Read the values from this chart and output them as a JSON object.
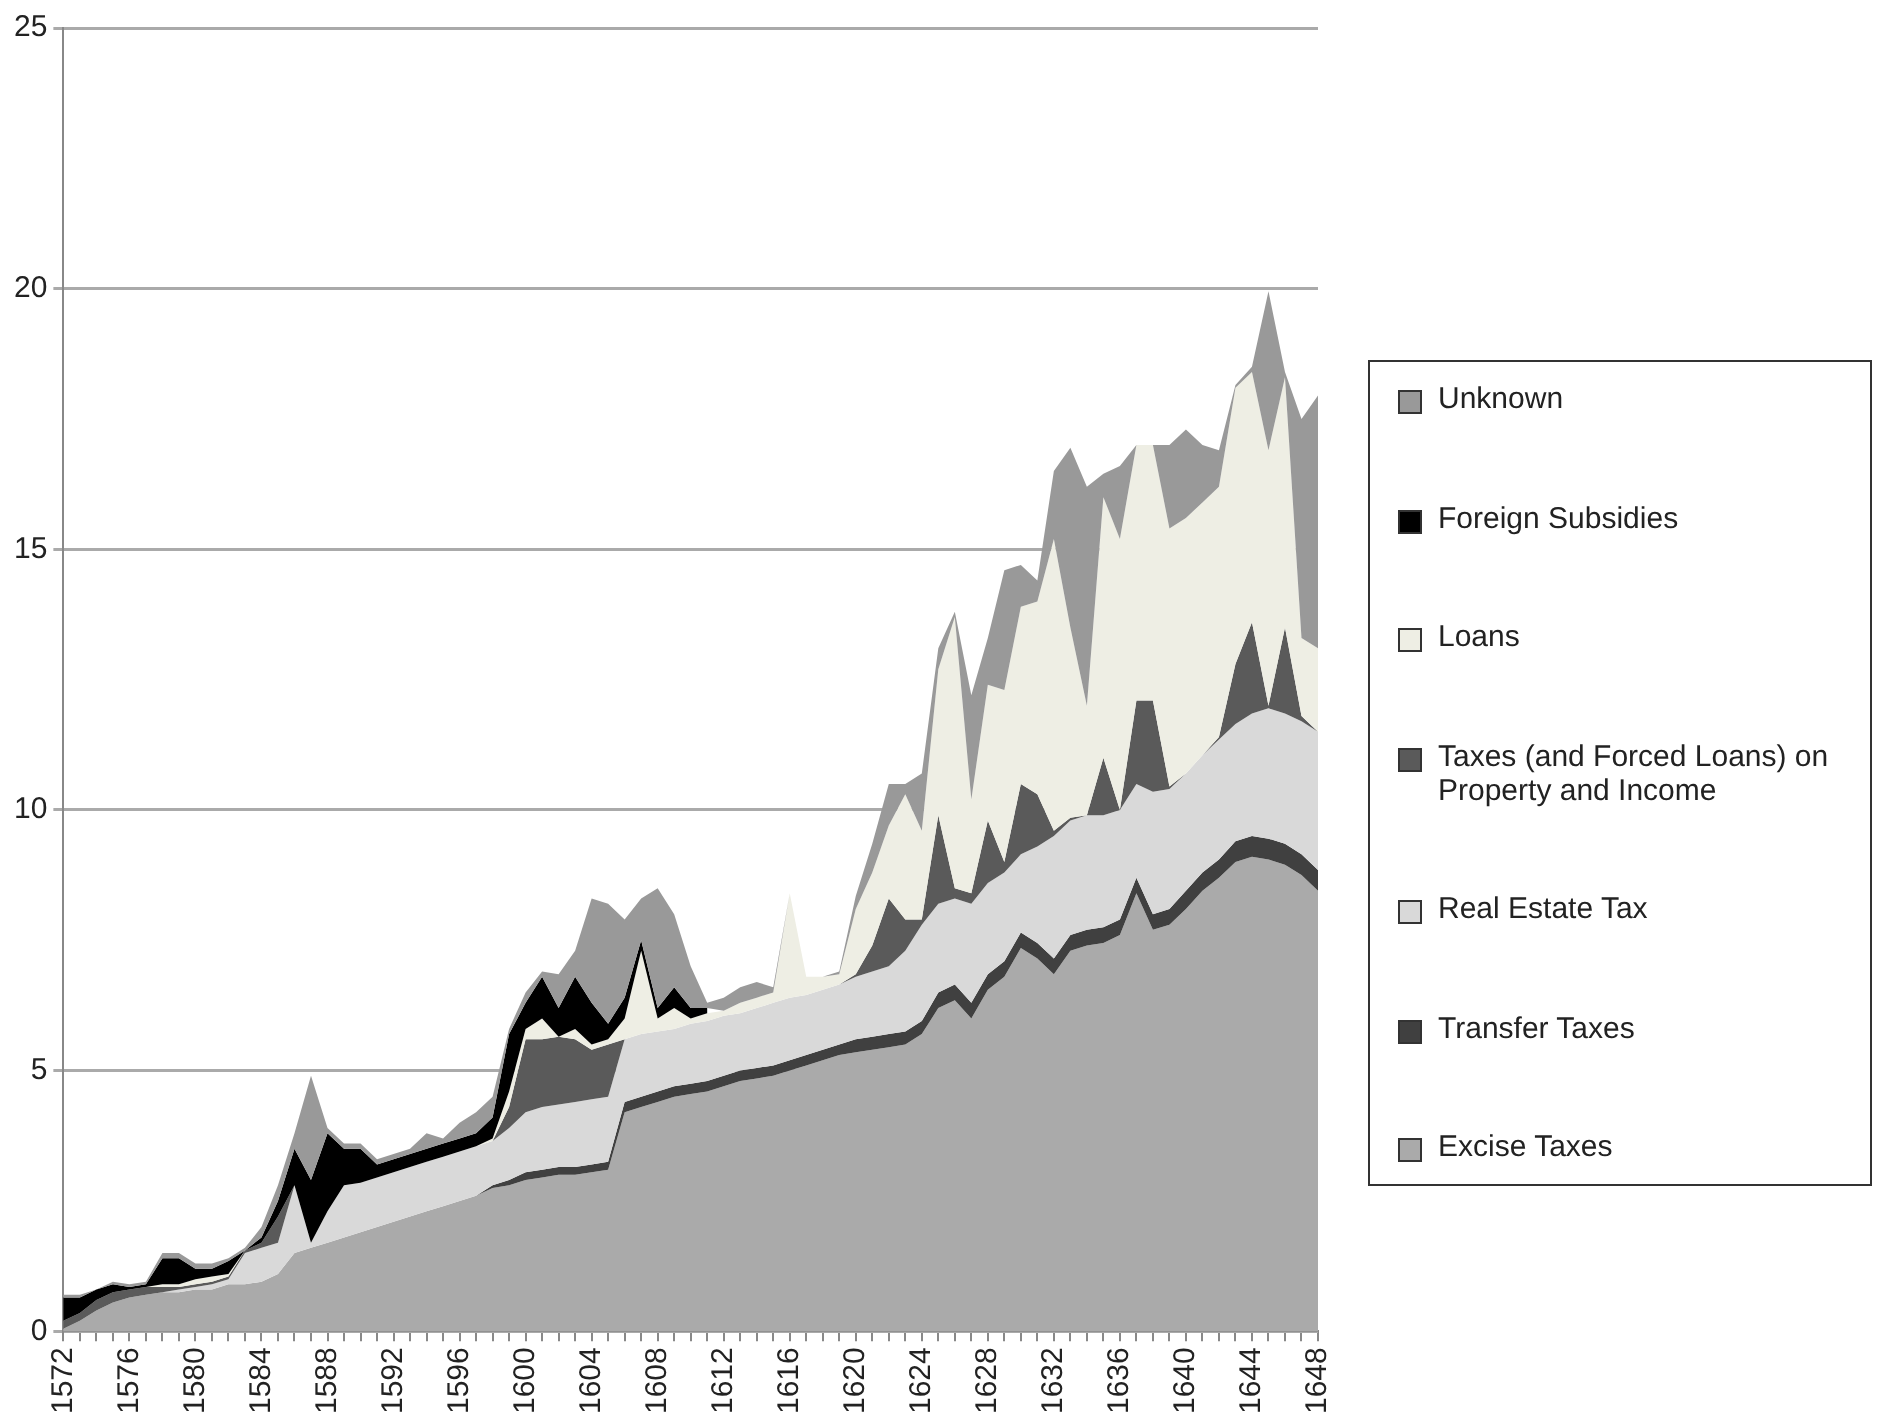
{
  "chart_data": {
    "type": "area",
    "stacked": true,
    "legend": "right",
    "grid": "y",
    "marker": "none",
    "x": [
      1572,
      1573,
      1574,
      1575,
      1576,
      1577,
      1578,
      1579,
      1580,
      1581,
      1582,
      1583,
      1584,
      1585,
      1586,
      1587,
      1588,
      1589,
      1590,
      1591,
      1592,
      1593,
      1594,
      1595,
      1596,
      1597,
      1598,
      1599,
      1600,
      1601,
      1602,
      1603,
      1604,
      1605,
      1606,
      1607,
      1608,
      1609,
      1610,
      1611,
      1612,
      1613,
      1614,
      1615,
      1616,
      1617,
      1618,
      1619,
      1620,
      1621,
      1622,
      1623,
      1624,
      1625,
      1626,
      1627,
      1628,
      1629,
      1630,
      1631,
      1632,
      1633,
      1634,
      1635,
      1636,
      1637,
      1638,
      1639,
      1640,
      1641,
      1642,
      1643,
      1644,
      1645,
      1646,
      1647,
      1648
    ],
    "xlim": [
      1572,
      1648
    ],
    "xticks": [
      1572,
      {
        "value": 1573,
        "label": null
      },
      {
        "value": 1574,
        "label": null
      },
      {
        "value": 1575,
        "label": null
      },
      1576,
      {
        "value": 1577,
        "label": null
      },
      {
        "value": 1578,
        "label": null
      },
      {
        "value": 1579,
        "label": null
      },
      1580,
      {
        "value": 1581,
        "label": null
      },
      {
        "value": 1582,
        "label": null
      },
      {
        "value": 1583,
        "label": null
      },
      1584,
      {
        "value": 1585,
        "label": null
      },
      {
        "value": 1586,
        "label": null
      },
      {
        "value": 1587,
        "label": null
      },
      1588,
      {
        "value": 1589,
        "label": null
      },
      {
        "value": 1590,
        "label": null
      },
      {
        "value": 1591,
        "label": null
      },
      1592,
      {
        "value": 1593,
        "label": null
      },
      {
        "value": 1594,
        "label": null
      },
      {
        "value": 1595,
        "label": null
      },
      1596,
      {
        "value": 1597,
        "label": null
      },
      {
        "value": 1598,
        "label": null
      },
      {
        "value": 1599,
        "label": null
      },
      1600,
      {
        "value": 1601,
        "label": null
      },
      {
        "value": 1602,
        "label": null
      },
      {
        "value": 1603,
        "label": null
      },
      1604,
      {
        "value": 1605,
        "label": null
      },
      {
        "value": 1606,
        "label": null
      },
      {
        "value": 1607,
        "label": null
      },
      1608,
      {
        "value": 1609,
        "label": null
      },
      {
        "value": 1610,
        "label": null
      },
      {
        "value": 1611,
        "label": null
      },
      1612,
      {
        "value": 1613,
        "label": null
      },
      {
        "value": 1614,
        "label": null
      },
      {
        "value": 1615,
        "label": null
      },
      1616,
      {
        "value": 1617,
        "label": null
      },
      {
        "value": 1618,
        "label": null
      },
      {
        "value": 1619,
        "label": null
      },
      1620,
      {
        "value": 1621,
        "label": null
      },
      {
        "value": 1622,
        "label": null
      },
      {
        "value": 1623,
        "label": null
      },
      1624,
      {
        "value": 1625,
        "label": null
      },
      {
        "value": 1626,
        "label": null
      },
      {
        "value": 1627,
        "label": null
      },
      1628,
      {
        "value": 1629,
        "label": null
      },
      {
        "value": 1630,
        "label": null
      },
      {
        "value": 1631,
        "label": null
      },
      1632,
      {
        "value": 1633,
        "label": null
      },
      {
        "value": 1634,
        "label": null
      },
      {
        "value": 1635,
        "label": null
      },
      1636,
      {
        "value": 1637,
        "label": null
      },
      {
        "value": 1638,
        "label": null
      },
      {
        "value": 1639,
        "label": null
      },
      1640,
      {
        "value": 1641,
        "label": null
      },
      {
        "value": 1642,
        "label": null
      },
      {
        "value": 1643,
        "label": null
      },
      1644,
      {
        "value": 1645,
        "label": null
      },
      {
        "value": 1646,
        "label": null
      },
      {
        "value": 1647,
        "label": null
      },
      1648
    ],
    "ylim": [
      0,
      25
    ],
    "yticks": [
      0,
      5,
      10,
      15,
      20,
      25
    ],
    "line_style": "solid",
    "series": [
      {
        "name": "Excise Taxes",
        "color": "#aaaaaa",
        "values": [
          0.05,
          0.2,
          0.4,
          0.55,
          0.65,
          0.7,
          0.75,
          0.75,
          0.8,
          0.8,
          0.9,
          0.9,
          0.95,
          1.1,
          1.5,
          1.6,
          1.7,
          1.8,
          1.9,
          2.0,
          2.1,
          2.2,
          2.3,
          2.4,
          2.5,
          2.6,
          2.75,
          2.8,
          2.9,
          2.95,
          3.0,
          3.0,
          3.05,
          3.1,
          4.2,
          4.3,
          4.4,
          4.5,
          4.55,
          4.6,
          4.7,
          4.8,
          4.85,
          4.9,
          5.0,
          5.1,
          5.2,
          5.3,
          5.35,
          5.4,
          5.45,
          5.5,
          5.7,
          6.2,
          6.35,
          6.0,
          6.55,
          6.8,
          7.35,
          7.15,
          6.85,
          7.3,
          7.4,
          7.45,
          7.6,
          8.4,
          7.7,
          7.8,
          8.1,
          8.45,
          8.7,
          9.0,
          9.1,
          9.05,
          8.95,
          8.75,
          8.45
        ]
      },
      {
        "name": "Transfer Taxes",
        "color": "#404040",
        "values": [
          0,
          0,
          0,
          0,
          0,
          0,
          0,
          0,
          0,
          0,
          0,
          0,
          0,
          0,
          0,
          0,
          0,
          0,
          0,
          0,
          0,
          0,
          0,
          0,
          0,
          0,
          0.05,
          0.1,
          0.15,
          0.15,
          0.15,
          0.15,
          0.15,
          0.15,
          0.2,
          0.2,
          0.2,
          0.2,
          0.2,
          0.2,
          0.2,
          0.2,
          0.2,
          0.2,
          0.2,
          0.2,
          0.2,
          0.2,
          0.25,
          0.25,
          0.25,
          0.25,
          0.25,
          0.3,
          0.3,
          0.3,
          0.3,
          0.3,
          0.3,
          0.3,
          0.3,
          0.3,
          0.3,
          0.3,
          0.3,
          0.3,
          0.3,
          0.3,
          0.35,
          0.35,
          0.35,
          0.4,
          0.4,
          0.4,
          0.4,
          0.4,
          0.4
        ]
      },
      {
        "name": "Real Estate Tax",
        "color": "#d9d9d9",
        "values": [
          0,
          0,
          0,
          0,
          0,
          0,
          0,
          0.05,
          0.05,
          0.1,
          0.1,
          0.6,
          0.65,
          0.6,
          1.3,
          0.1,
          0.6,
          1.0,
          0.95,
          0.95,
          0.95,
          0.95,
          0.95,
          0.95,
          0.95,
          0.95,
          0.85,
          1.0,
          1.15,
          1.2,
          1.2,
          1.25,
          1.25,
          1.25,
          1.2,
          1.2,
          1.15,
          1.1,
          1.15,
          1.15,
          1.15,
          1.1,
          1.15,
          1.2,
          1.2,
          1.15,
          1.15,
          1.15,
          1.2,
          1.25,
          1.3,
          1.55,
          1.85,
          1.7,
          1.65,
          1.9,
          1.75,
          1.7,
          1.5,
          1.85,
          2.35,
          2.2,
          2.2,
          2.15,
          2.1,
          1.8,
          2.35,
          2.3,
          2.25,
          2.25,
          2.3,
          2.25,
          2.35,
          2.5,
          2.5,
          2.55,
          2.65
        ]
      },
      {
        "name": "Taxes (and Forced Loans) on Property and Income",
        "color": "#5a5a5a",
        "values": [
          0.15,
          0.15,
          0.2,
          0.2,
          0.15,
          0.15,
          0.1,
          0.05,
          0.05,
          0.05,
          0.05,
          0.05,
          0.1,
          0.5,
          0,
          0,
          0,
          0,
          0,
          0,
          0,
          0,
          0,
          0,
          0,
          0,
          0,
          0.4,
          1.4,
          1.3,
          1.3,
          1.2,
          0.95,
          1.0,
          0,
          0,
          0,
          0,
          0,
          0,
          0,
          0,
          0,
          0,
          0,
          0,
          0,
          0,
          0.05,
          0.5,
          1.3,
          0.6,
          0.1,
          1.7,
          0.2,
          0.2,
          1.2,
          0.2,
          1.35,
          1.0,
          0.1,
          0.05,
          0,
          1.1,
          0,
          1.6,
          1.75,
          0.05,
          0,
          0,
          0.05,
          1.15,
          1.75,
          0.05,
          1.65,
          0.1,
          0
        ]
      },
      {
        "name": "Loans",
        "color": "#eeeee4",
        "values": [
          0,
          0,
          0,
          0,
          0,
          0,
          0.05,
          0.05,
          0.1,
          0.1,
          0.05,
          0,
          0,
          0,
          0,
          0,
          0,
          0,
          0,
          0,
          0,
          0,
          0,
          0,
          0,
          0,
          0.05,
          0.3,
          0.2,
          0.4,
          0,
          0.2,
          0.1,
          0.1,
          0.4,
          1.6,
          0.25,
          0.4,
          0.1,
          0.15,
          0.1,
          0.2,
          0.2,
          0.2,
          2.0,
          0.35,
          0.25,
          0.2,
          1.25,
          1.4,
          1.4,
          2.4,
          1.7,
          2.8,
          5.2,
          1.8,
          2.6,
          3.3,
          3.4,
          3.7,
          5.6,
          3.65,
          2.1,
          5.0,
          5.2,
          4.9,
          4.9,
          4.95,
          4.9,
          4.85,
          4.8,
          5.3,
          4.8,
          4.9,
          4.8,
          1.5,
          1.6
        ]
      },
      {
        "name": "Foreign Subsidies",
        "color": "#000000",
        "values": [
          0.45,
          0.3,
          0.2,
          0.15,
          0.05,
          0.05,
          0.5,
          0.5,
          0.2,
          0.15,
          0.25,
          0,
          0.1,
          0.3,
          0.7,
          1.2,
          1.5,
          0.7,
          0.65,
          0.25,
          0.25,
          0.25,
          0.25,
          0.25,
          0.25,
          0.25,
          0.4,
          1.1,
          0.5,
          0.8,
          0.55,
          1.0,
          0.8,
          0.3,
          0.4,
          0.2,
          0.2,
          0.4,
          0.2,
          0.1,
          null,
          null,
          null,
          null,
          null,
          null,
          null,
          null,
          null,
          null,
          null,
          null,
          null,
          null,
          null,
          null,
          null,
          null,
          null,
          null,
          null,
          null,
          null,
          null,
          null,
          null,
          null,
          null,
          null,
          null,
          null,
          null,
          null,
          null,
          null,
          null,
          null
        ]
      },
      {
        "name": "Unknown",
        "color": "#999999",
        "values": [
          0.05,
          0.05,
          0,
          0.05,
          0.05,
          0.05,
          0.1,
          0.1,
          0.1,
          0.1,
          0.05,
          0.05,
          0.2,
          0.3,
          0.3,
          2.0,
          0.1,
          0.1,
          0.1,
          0.1,
          0.1,
          0.1,
          0.3,
          0.1,
          0.3,
          0.4,
          0.4,
          0.1,
          0.2,
          0.1,
          0.65,
          0.5,
          2.0,
          2.3,
          1.5,
          0.8,
          2.3,
          1.4,
          0.8,
          0.1,
          0.25,
          0.3,
          0.3,
          0.1,
          0,
          0,
          0,
          0.05,
          0.25,
          0.55,
          0.8,
          0.2,
          1.1,
          0.4,
          0.1,
          2.0,
          0.9,
          2.3,
          0.8,
          0.4,
          1.3,
          3.45,
          4.2,
          0.45,
          1.4,
          0,
          0,
          1.6,
          1.7,
          1.1,
          0.7,
          0.05,
          0.1,
          3.05,
          0.1,
          4.2,
          4.85
        ]
      }
    ]
  }
}
